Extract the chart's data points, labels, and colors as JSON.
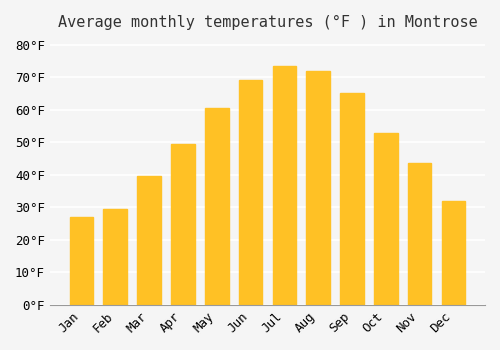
{
  "title": "Average monthly temperatures (°F ) in Montrose",
  "months": [
    "Jan",
    "Feb",
    "Mar",
    "Apr",
    "May",
    "Jun",
    "Jul",
    "Aug",
    "Sep",
    "Oct",
    "Nov",
    "Dec"
  ],
  "values": [
    27,
    29.5,
    39.5,
    49.5,
    60.5,
    69,
    73.5,
    72,
    65,
    53,
    43.5,
    32
  ],
  "bar_color": "#FFC125",
  "bar_edge_color": "#FFD700",
  "background_color": "#F5F5F5",
  "grid_color": "#FFFFFF",
  "ylim": [
    0,
    82
  ],
  "yticks": [
    0,
    10,
    20,
    30,
    40,
    50,
    60,
    70,
    80
  ],
  "title_fontsize": 11,
  "tick_fontsize": 9,
  "font_family": "monospace"
}
